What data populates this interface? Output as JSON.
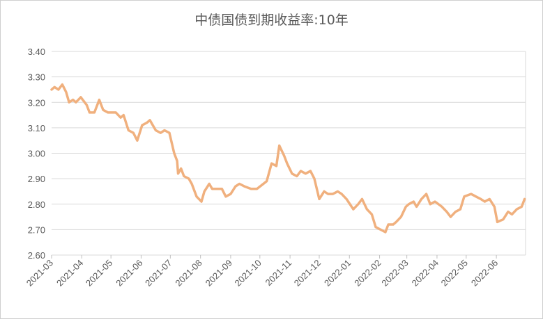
{
  "chart_data": {
    "type": "line",
    "title": "中债国债到期收益率:10年",
    "xlabel": "",
    "ylabel": "",
    "ylim": [
      2.6,
      3.4
    ],
    "yticks": [
      "3.40",
      "3.30",
      "3.20",
      "3.10",
      "3.00",
      "2.90",
      "2.80",
      "2.70",
      "2.60"
    ],
    "categories": [
      "2021-03",
      "2021-04",
      "2021-05",
      "2021-06",
      "2021-07",
      "2021-08",
      "2021-09",
      "2021-10",
      "2021-11",
      "2021-12",
      "2022-01",
      "2022-02",
      "2022-03",
      "2022-04",
      "2022-05",
      "2022-06"
    ],
    "grid": true,
    "legend": "none",
    "line_color": "#f0b07e",
    "series": [
      {
        "name": "",
        "x": [
          "2021-03-01",
          "2021-03-04",
          "2021-03-08",
          "2021-03-12",
          "2021-03-16",
          "2021-03-19",
          "2021-03-23",
          "2021-03-26",
          "2021-03-31",
          "2021-04-06",
          "2021-04-09",
          "2021-04-14",
          "2021-04-19",
          "2021-04-23",
          "2021-04-28",
          "2021-05-06",
          "2021-05-11",
          "2021-05-14",
          "2021-05-19",
          "2021-05-24",
          "2021-05-28",
          "2021-06-02",
          "2021-06-07",
          "2021-06-10",
          "2021-06-16",
          "2021-06-21",
          "2021-06-25",
          "2021-06-30",
          "2021-07-05",
          "2021-07-08",
          "2021-07-09",
          "2021-07-12",
          "2021-07-15",
          "2021-07-20",
          "2021-07-23",
          "2021-07-28",
          "2021-08-02",
          "2021-08-05",
          "2021-08-10",
          "2021-08-13",
          "2021-08-18",
          "2021-08-23",
          "2021-08-27",
          "2021-09-01",
          "2021-09-06",
          "2021-09-10",
          "2021-09-15",
          "2021-09-22",
          "2021-09-28",
          "2021-10-08",
          "2021-10-13",
          "2021-10-18",
          "2021-10-21",
          "2021-10-26",
          "2021-10-29",
          "2021-11-03",
          "2021-11-08",
          "2021-11-12",
          "2021-11-17",
          "2021-11-22",
          "2021-11-26",
          "2021-12-01",
          "2021-12-06",
          "2021-12-10",
          "2021-12-15",
          "2021-12-20",
          "2021-12-24",
          "2021-12-29",
          "2022-01-05",
          "2022-01-10",
          "2022-01-14",
          "2022-01-19",
          "2022-01-24",
          "2022-01-28",
          "2022-02-07",
          "2022-02-10",
          "2022-02-15",
          "2022-02-18",
          "2022-02-23",
          "2022-02-28",
          "2022-03-03",
          "2022-03-08",
          "2022-03-11",
          "2022-03-16",
          "2022-03-21",
          "2022-03-25",
          "2022-03-30",
          "2022-04-06",
          "2022-04-11",
          "2022-04-15",
          "2022-04-20",
          "2022-04-25",
          "2022-04-29",
          "2022-05-06",
          "2022-05-11",
          "2022-05-16",
          "2022-05-20",
          "2022-05-25",
          "2022-05-30",
          "2022-06-02",
          "2022-06-08",
          "2022-06-13",
          "2022-06-17",
          "2022-06-22",
          "2022-06-27",
          "2022-06-30"
        ],
        "values": [
          3.25,
          3.26,
          3.25,
          3.27,
          3.24,
          3.2,
          3.21,
          3.2,
          3.22,
          3.19,
          3.16,
          3.16,
          3.21,
          3.17,
          3.16,
          3.16,
          3.14,
          3.15,
          3.09,
          3.08,
          3.05,
          3.11,
          3.12,
          3.13,
          3.09,
          3.08,
          3.09,
          3.08,
          3.0,
          2.97,
          2.92,
          2.94,
          2.91,
          2.9,
          2.88,
          2.83,
          2.81,
          2.85,
          2.88,
          2.86,
          2.86,
          2.86,
          2.83,
          2.84,
          2.87,
          2.88,
          2.87,
          2.86,
          2.86,
          2.89,
          2.96,
          2.95,
          3.03,
          2.99,
          2.96,
          2.92,
          2.91,
          2.93,
          2.92,
          2.93,
          2.9,
          2.82,
          2.85,
          2.84,
          2.84,
          2.85,
          2.84,
          2.82,
          2.78,
          2.8,
          2.82,
          2.78,
          2.76,
          2.71,
          2.69,
          2.72,
          2.72,
          2.73,
          2.75,
          2.79,
          2.8,
          2.81,
          2.79,
          2.82,
          2.84,
          2.8,
          2.81,
          2.79,
          2.77,
          2.75,
          2.77,
          2.78,
          2.83,
          2.84,
          2.83,
          2.82,
          2.81,
          2.82,
          2.79,
          2.73,
          2.74,
          2.77,
          2.76,
          2.78,
          2.79,
          2.82
        ]
      }
    ]
  }
}
